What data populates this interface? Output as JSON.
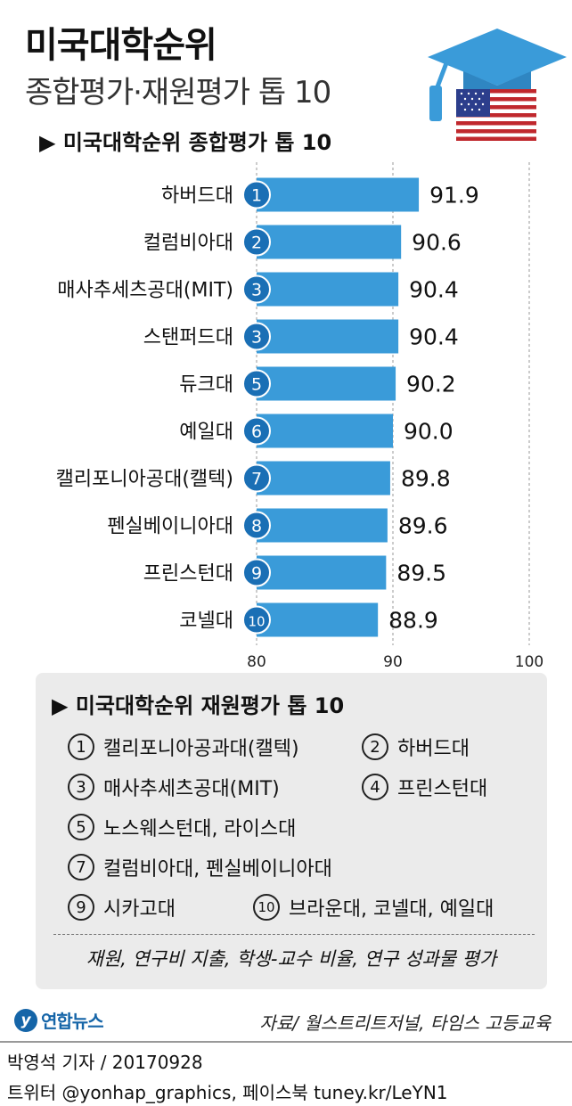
{
  "header": {
    "title": "미국대학순위",
    "subtitle": "종합평가·재원평가 톱 10"
  },
  "chart_data": {
    "type": "bar",
    "orientation": "horizontal",
    "title": "▶ 미국대학순위 종합평가 톱 10",
    "categories": [
      "하버드대",
      "컬럼비아대",
      "매사추세츠공대(MIT)",
      "스탠퍼드대",
      "듀크대",
      "예일대",
      "캘리포니아공대(캘텍)",
      "펜실베이니아대",
      "프린스턴대",
      "코넬대"
    ],
    "ranks": [
      "1",
      "2",
      "3",
      "3",
      "5",
      "6",
      "7",
      "8",
      "9",
      "10"
    ],
    "values": [
      91.9,
      90.6,
      90.4,
      90.4,
      90.2,
      90.0,
      89.8,
      89.6,
      89.5,
      88.9
    ],
    "value_labels": [
      "91.9",
      "90.6",
      "90.4",
      "90.4",
      "90.2",
      "90.0",
      "89.8",
      "89.6",
      "89.5",
      "88.9"
    ],
    "xlim": [
      80,
      100
    ],
    "xticks": [
      "80",
      "90",
      "100"
    ],
    "grid": true,
    "bar_color": "#3a9bd9",
    "badge_color": "#1a6fb5"
  },
  "financial_ranking": {
    "heading": "▶ 미국대학순위 재원평가 톱 10",
    "items": [
      {
        "rank": "1",
        "name": "캘리포니아공과대(캘텍)"
      },
      {
        "rank": "2",
        "name": "하버드대"
      },
      {
        "rank": "3",
        "name": "매사추세츠공대(MIT)"
      },
      {
        "rank": "4",
        "name": "프린스턴대"
      },
      {
        "rank": "5",
        "name": "노스웨스턴대, 라이스대"
      },
      {
        "rank": "7",
        "name": "컬럼비아대, 펜실베이니아대"
      },
      {
        "rank": "9",
        "name": "시카고대"
      },
      {
        "rank": "10",
        "name": "브라운대, 코넬대, 예일대"
      }
    ],
    "criteria": "재원, 연구비 지출, 학생-교수 비율, 연구 성과물 평가"
  },
  "footer": {
    "logo_text": "연합뉴스",
    "source": "자료/ 월스트리트저널, 타임스 고등교육",
    "byline": "박영석 기자 / 20170928",
    "social": "트위터 @yonhap_graphics, 페이스북 tuney.kr/LeYN1"
  },
  "icons": [
    "graduation-cap-icon",
    "us-flag-icon",
    "triangle-bullet-icon"
  ],
  "colors": {
    "accent": "#3a9bd9",
    "brand": "#1565a8"
  }
}
